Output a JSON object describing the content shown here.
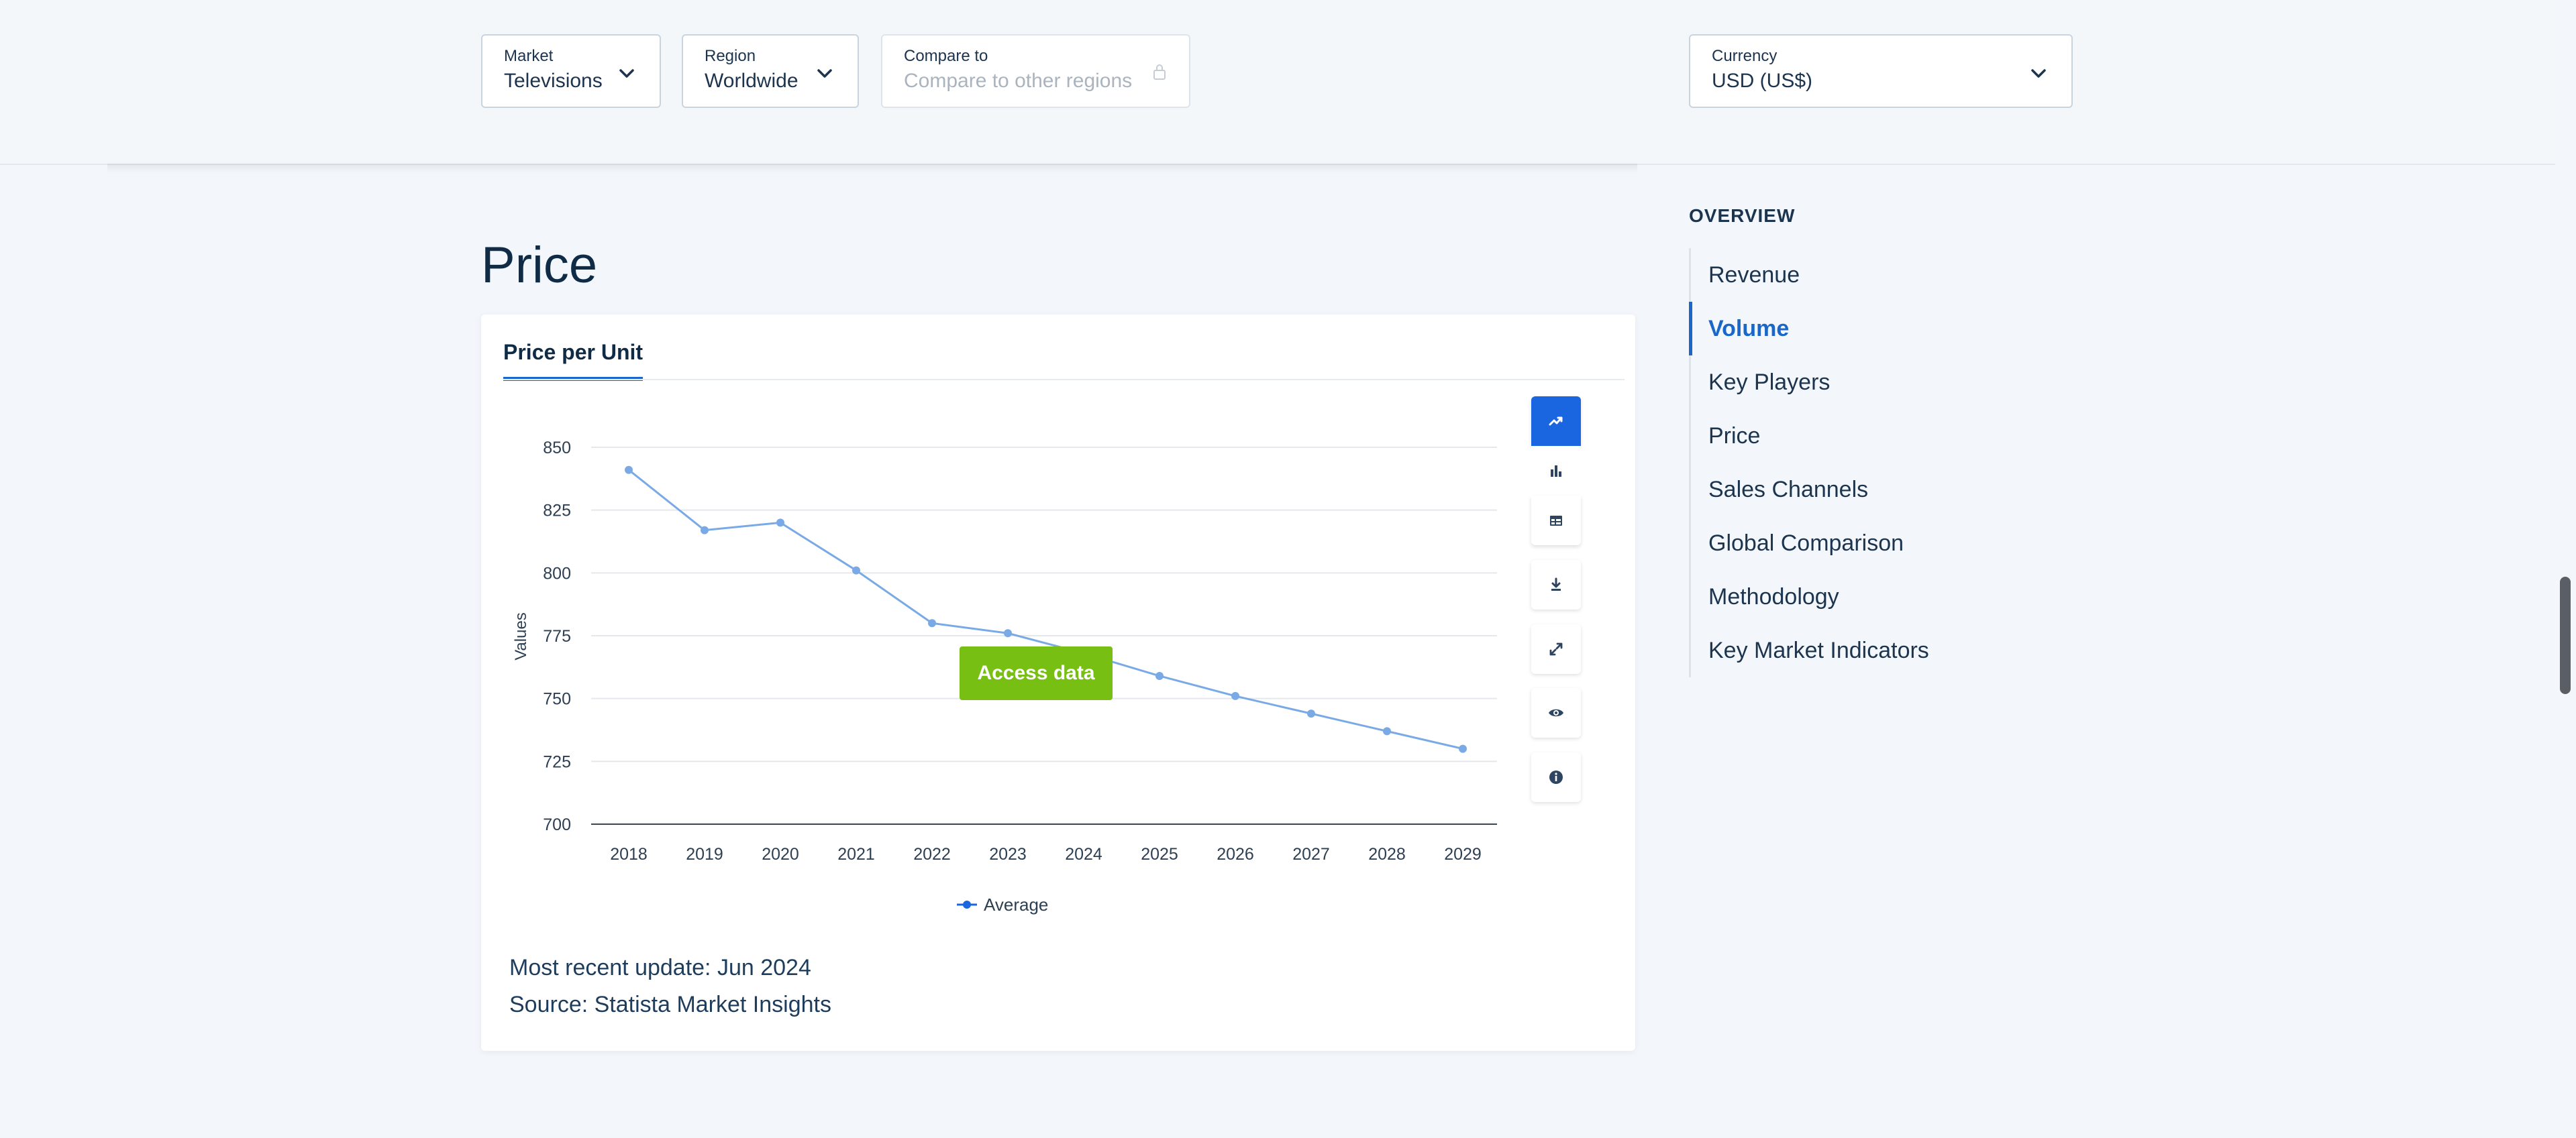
{
  "filters": {
    "market": {
      "label": "Market",
      "value": "Televisions"
    },
    "region": {
      "label": "Region",
      "value": "Worldwide"
    },
    "compare": {
      "label": "Compare to",
      "placeholder": "Compare to other regions"
    },
    "currency": {
      "label": "Currency",
      "value": "USD (US$)"
    }
  },
  "section_title": "Price",
  "tab_label": "Price per Unit",
  "access_button": "Access data",
  "update_text": "Most recent update: Jun 2024",
  "source_text": "Source: Statista Market Insights",
  "toolbar_icons": [
    "line-chart-icon",
    "bar-chart-icon",
    "table-icon",
    "download-icon",
    "expand-icon",
    "eye-icon",
    "info-icon"
  ],
  "colors": {
    "line": "#7aaae6",
    "accent": "#1a66c9",
    "cta": "#77bf12"
  },
  "chart_data": {
    "type": "line",
    "categories": [
      "2018",
      "2019",
      "2020",
      "2021",
      "2022",
      "2023",
      "2024",
      "2025",
      "2026",
      "2027",
      "2028",
      "2029"
    ],
    "series": [
      {
        "name": "Average",
        "values": [
          841,
          817,
          820,
          801,
          780,
          776,
          768,
          759,
          751,
          744,
          737,
          730
        ]
      }
    ],
    "ylabel": "Values",
    "yticks": [
      700,
      725,
      750,
      775,
      800,
      825,
      850
    ],
    "ylim": [
      700,
      850
    ],
    "grid": true,
    "legend": "bottom"
  },
  "sidebar": {
    "heading": "OVERVIEW",
    "items": [
      {
        "label": "Revenue",
        "active": false
      },
      {
        "label": "Volume",
        "active": true
      },
      {
        "label": "Key Players",
        "active": false
      },
      {
        "label": "Price",
        "active": false
      },
      {
        "label": "Sales Channels",
        "active": false
      },
      {
        "label": "Global Comparison",
        "active": false
      },
      {
        "label": "Methodology",
        "active": false
      },
      {
        "label": "Key Market Indicators",
        "active": false
      }
    ]
  }
}
